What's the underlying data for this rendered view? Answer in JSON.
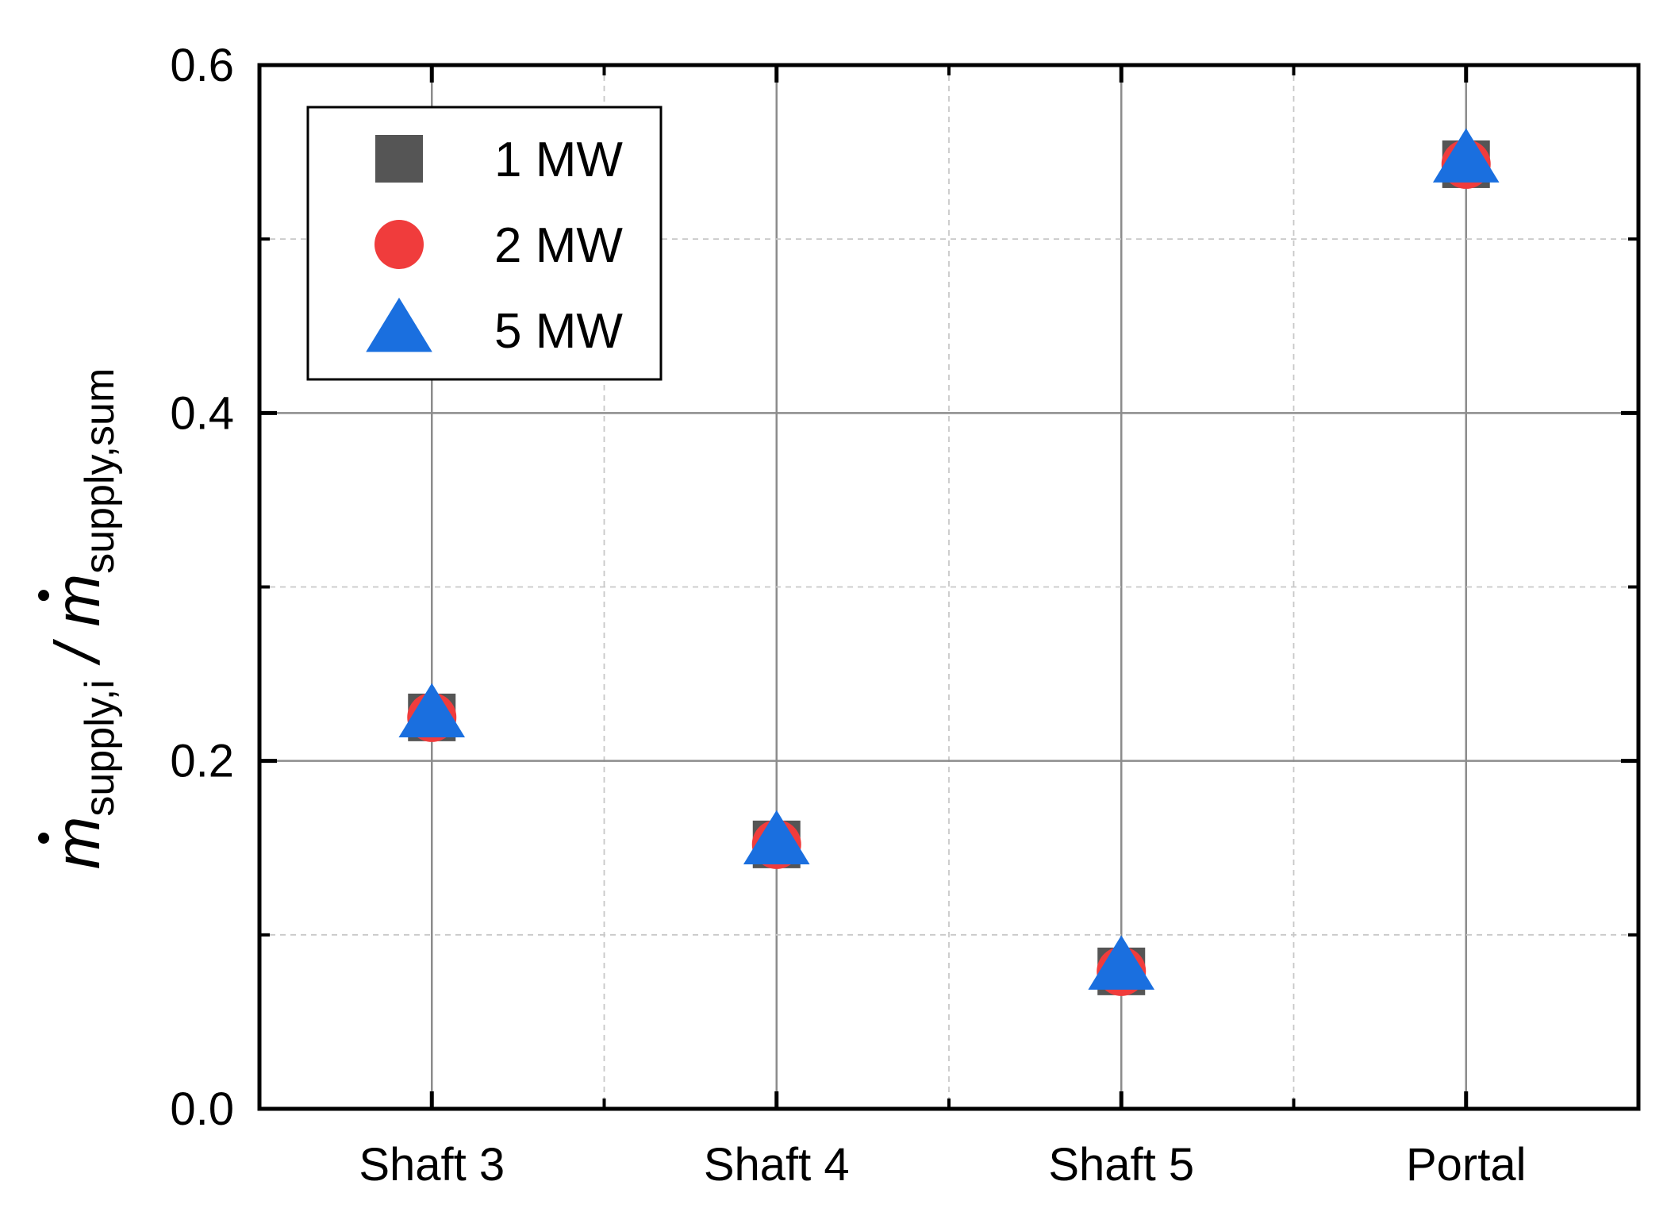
{
  "chart_data": {
    "type": "scatter",
    "categories": [
      "Shaft 3",
      "Shaft 4",
      "Shaft 5",
      "Portal"
    ],
    "ylabel": {
      "numerator": "m",
      "numerator_sub": "supply,i",
      "separator": " / ",
      "denominator": "m",
      "denominator_sub": "supply,sum"
    },
    "ylim": [
      0.0,
      0.6
    ],
    "yticks": [
      0.0,
      0.2,
      0.4,
      0.6
    ],
    "ytick_labels": [
      "0.0",
      "0.2",
      "0.4",
      "0.6"
    ],
    "grid": true,
    "legend_position": "top-left",
    "series": [
      {
        "name": "1 MW",
        "marker": "square",
        "color": "#555555",
        "values": [
          0.225,
          0.152,
          0.079,
          0.543
        ]
      },
      {
        "name": "2 MW",
        "marker": "circle",
        "color": "#f03c3c",
        "values": [
          0.225,
          0.152,
          0.079,
          0.543
        ]
      },
      {
        "name": "5 MW",
        "marker": "triangle",
        "color": "#1a6fdf",
        "values": [
          0.226,
          0.153,
          0.081,
          0.545
        ]
      }
    ]
  }
}
